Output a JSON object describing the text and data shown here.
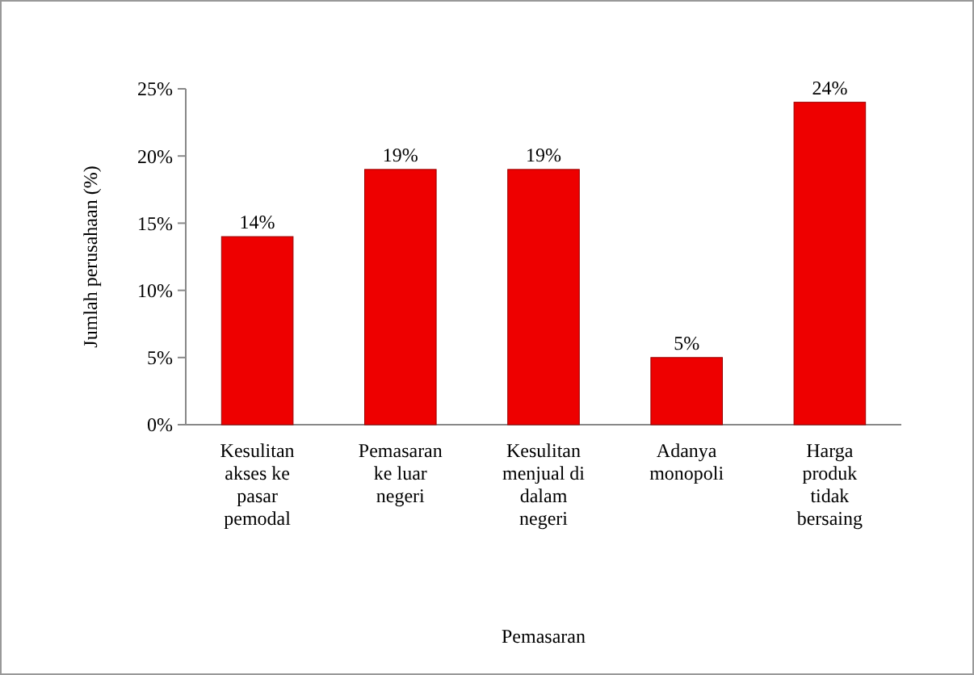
{
  "chart_data": {
    "type": "bar",
    "xlabel": "Pemasaran",
    "ylabel": "Jumlah perusahaan (%)",
    "categories": [
      "Kesulitan akses ke pasar pemodal",
      "Pemasaran ke luar negeri",
      "Kesulitan menjual di dalam negeri",
      "Adanya monopoli",
      "Harga produk tidak bersaing"
    ],
    "values": [
      14,
      19,
      19,
      5,
      24
    ],
    "color": "#ee0000",
    "data_labels": true,
    "value_labels": [
      "14%",
      "19%",
      "19%",
      "5%",
      "24%"
    ],
    "ylim": [
      0,
      25
    ],
    "yticks": [
      {
        "value": 0,
        "label": "0%"
      },
      {
        "value": 5,
        "label": "5%"
      },
      {
        "value": 10,
        "label": "10%"
      },
      {
        "value": 15,
        "label": "15%"
      },
      {
        "value": 20,
        "label": "20%"
      },
      {
        "value": 25,
        "label": "25%"
      }
    ]
  }
}
